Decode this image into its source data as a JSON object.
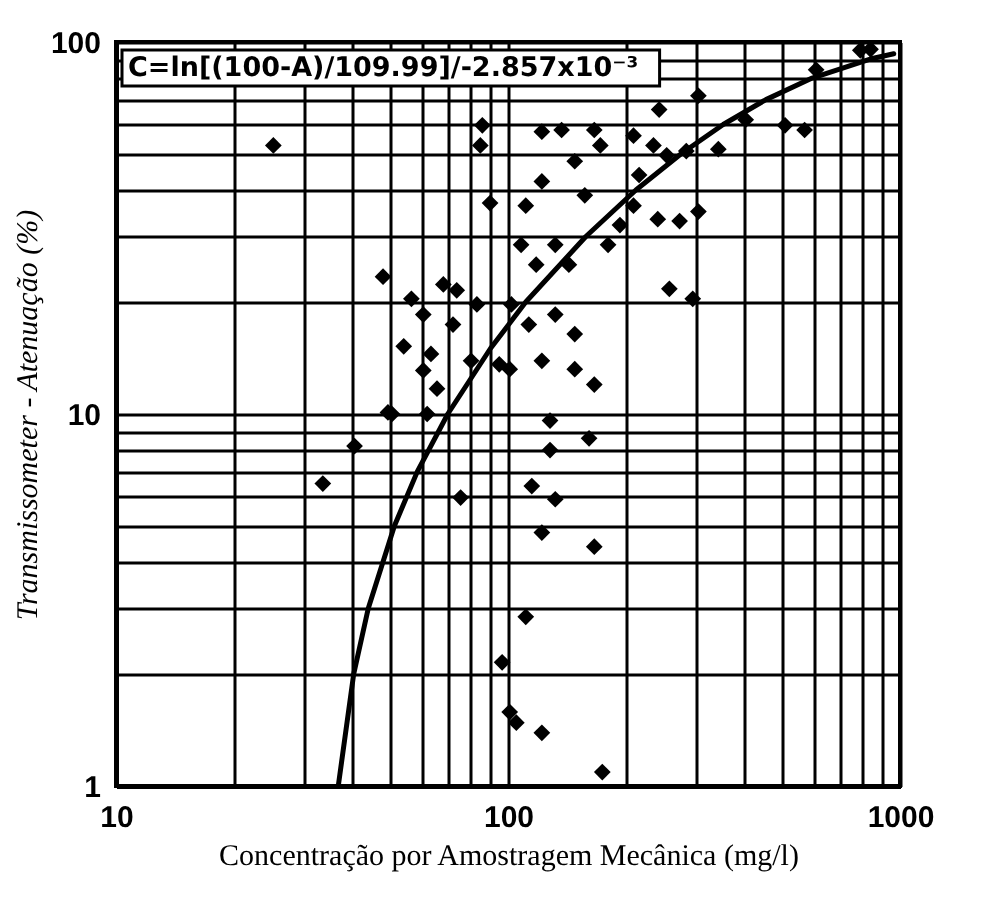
{
  "chart_data": {
    "type": "scatter",
    "xlabel": "Concentração por Amostragem Mecânica (mg/l)",
    "ylabel": "Transmissometer - Atenuação (%)",
    "annotations": [
      "C=ln[(100-A)/109.99]/-2.857x10⁻³"
    ],
    "log": "xy",
    "grid": true,
    "xlim": [
      10,
      1000
    ],
    "ylim": [
      1,
      100
    ],
    "xticks": [
      10,
      {
        "value": 20,
        "label": null
      },
      {
        "value": 30,
        "label": null
      },
      {
        "value": 40,
        "label": null
      },
      {
        "value": 50,
        "label": null
      },
      {
        "value": 60,
        "label": null
      },
      {
        "value": 70,
        "label": null
      },
      {
        "value": 80,
        "label": null
      },
      {
        "value": 90,
        "label": null
      },
      100,
      {
        "value": 200,
        "label": null
      },
      {
        "value": 300,
        "label": null
      },
      {
        "value": 400,
        "label": null
      },
      {
        "value": 500,
        "label": null
      },
      {
        "value": 600,
        "label": null
      },
      {
        "value": 700,
        "label": null
      },
      {
        "value": 800,
        "label": null
      },
      {
        "value": 900,
        "label": null
      },
      1000
    ],
    "yticks": [
      1,
      {
        "value": 2,
        "label": null
      },
      {
        "value": 3,
        "label": null
      },
      {
        "value": 4,
        "label": null
      },
      {
        "value": 5,
        "label": null
      },
      {
        "value": 6,
        "label": null
      },
      {
        "value": 7,
        "label": null
      },
      {
        "value": 8,
        "label": null
      },
      {
        "value": 9,
        "label": null
      },
      10,
      {
        "value": 20,
        "label": null
      },
      {
        "value": 30,
        "label": null
      },
      {
        "value": 40,
        "label": null
      },
      {
        "value": 50,
        "label": null
      },
      {
        "value": 60,
        "label": null
      },
      {
        "value": 70,
        "label": null
      },
      {
        "value": 80,
        "label": null
      },
      {
        "value": 90,
        "label": null
      },
      100
    ],
    "series": [
      {
        "marker": "diamond",
        "color": "#000000",
        "x": [
          25.2,
          48,
          56.7,
          60.8,
          54.2,
          60.8,
          65.9,
          49.4,
          40.6,
          33.7,
          62.2,
          75.7,
          128,
          115,
          132,
          122,
          166,
          111,
          96.6,
          101,
          105,
          122,
          174,
          161,
          166,
          128,
          50.6,
          74,
          68.4,
          83.3,
          90,
          85,
          111,
          122,
          122,
          137,
          166,
          148,
          157,
          132,
          118,
          143,
          180,
          193,
          209,
          216,
          235,
          254,
          285,
          241,
          274,
          306,
          258,
          296,
          344,
          404,
          509,
          571,
          611,
          306,
          243,
          209,
          172,
          108,
          102,
          113,
          132,
          148,
          122,
          101,
          95,
          148,
          63.6,
          72.4,
          80.5,
          86,
          792,
          841
        ],
        "values": [
          52.7,
          23.4,
          20.4,
          18.5,
          15.2,
          13.1,
          11.7,
          10.1,
          8.2,
          6.5,
          10.0,
          5.96,
          8.0,
          6.4,
          5.9,
          4.8,
          4.4,
          2.85,
          2.15,
          1.58,
          1.48,
          1.39,
          1.09,
          8.6,
          12.0,
          9.6,
          10.0,
          21.5,
          22.3,
          19.7,
          36.9,
          52.7,
          36.3,
          42.2,
          57.4,
          58,
          58,
          47.8,
          38.7,
          28.5,
          25.2,
          25.2,
          28.5,
          32.2,
          36.3,
          43.9,
          52.7,
          49.6,
          50.9,
          33.4,
          33.0,
          35,
          21.7,
          20.4,
          51.5,
          61.8,
          59.7,
          58,
          84.2,
          71.7,
          65.8,
          56,
          52.7,
          28.5,
          19.7,
          17.4,
          18.5,
          16.4,
          13.9,
          13.2,
          13.6,
          13.2,
          14.5,
          17.4,
          13.9,
          59.7,
          95,
          95.6
        ]
      },
      {
        "type": "line",
        "marker": "none",
        "line_style": "solid",
        "color": "#000000",
        "x": [
          36.9,
          40.4,
          44.0,
          51.3,
          58.7,
          70.2,
          90.2,
          111,
          158,
          212,
          276,
          354,
          455,
          597,
          839,
          964
        ],
        "values": [
          1,
          2,
          3,
          5,
          7,
          10,
          15,
          20,
          30,
          40,
          50,
          60,
          70,
          80,
          90,
          93
        ]
      }
    ]
  }
}
